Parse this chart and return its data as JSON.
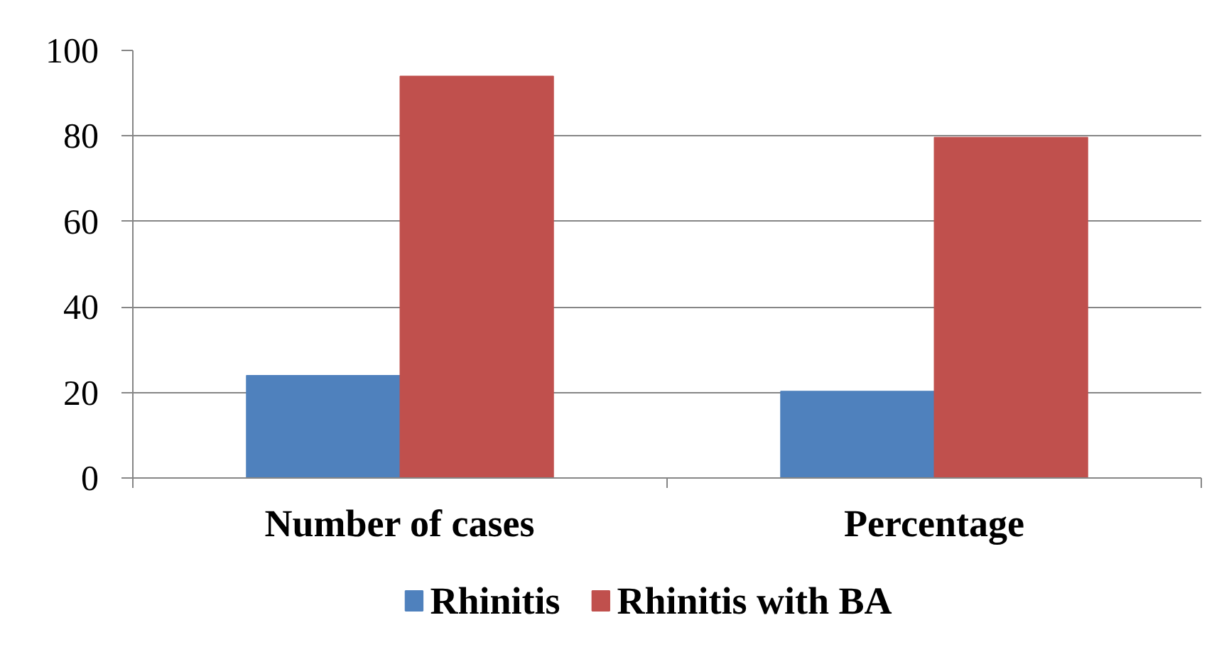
{
  "chart_data": {
    "type": "bar",
    "categories": [
      "Number of cases",
      "Percentage"
    ],
    "series": [
      {
        "name": "Rhinitis",
        "color": "#4f81bd",
        "values": [
          24,
          20.3
        ]
      },
      {
        "name": "Rhinitis with BA",
        "color": "#c0504d",
        "values": [
          94,
          79.7
        ]
      }
    ],
    "ylim": [
      0,
      100
    ],
    "yticks": [
      0,
      20,
      40,
      60,
      80,
      100
    ],
    "grid": "y",
    "legend": "bottom"
  }
}
